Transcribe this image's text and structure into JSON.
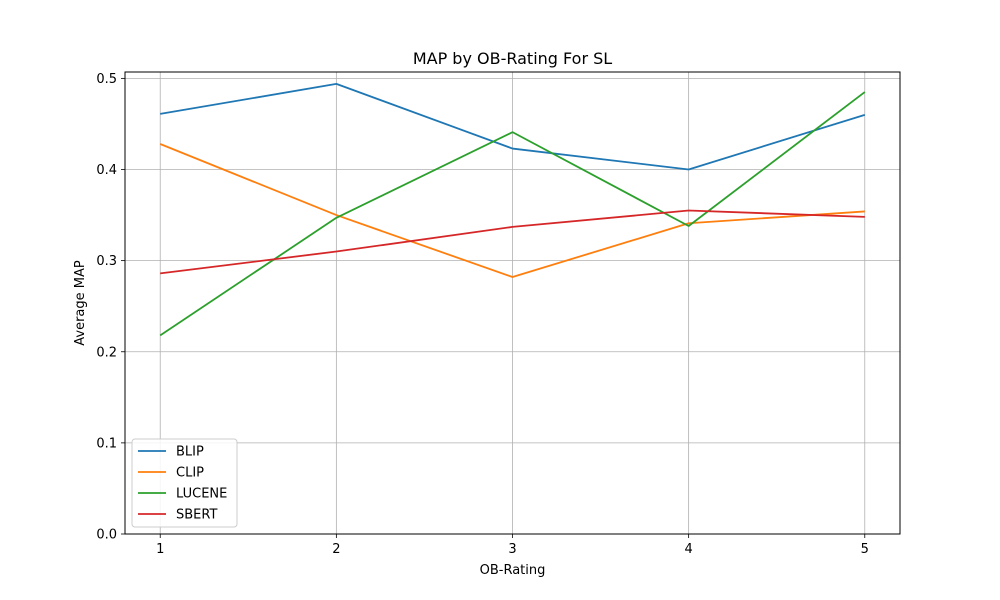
{
  "chart_data": {
    "type": "line",
    "title": "MAP by OB-Rating For SL",
    "xlabel": "OB-Rating",
    "ylabel": "Average MAP",
    "x": [
      1,
      2,
      3,
      4,
      5
    ],
    "x_tick_labels": [
      "1",
      "2",
      "3",
      "4",
      "5"
    ],
    "xlim": [
      0.8,
      5.2
    ],
    "ylim": [
      0,
      0.507
    ],
    "y_ticks": [
      0.0,
      0.1,
      0.2,
      0.3,
      0.4,
      0.5
    ],
    "y_tick_labels": [
      "0.0",
      "0.1",
      "0.2",
      "0.3",
      "0.4",
      "0.5"
    ],
    "grid": true,
    "legend_position": "bottom-left",
    "series": [
      {
        "name": "BLIP",
        "color": "#1f77b4",
        "values": [
          0.461,
          0.494,
          0.423,
          0.4,
          0.46
        ]
      },
      {
        "name": "CLIP",
        "color": "#ff7f0e",
        "values": [
          0.428,
          0.35,
          0.282,
          0.341,
          0.354
        ]
      },
      {
        "name": "LUCENE",
        "color": "#2ca02c",
        "values": [
          0.218,
          0.347,
          0.441,
          0.338,
          0.485
        ]
      },
      {
        "name": "SBERT",
        "color": "#d62728",
        "values": [
          0.286,
          0.31,
          0.337,
          0.355,
          0.348
        ]
      }
    ]
  }
}
